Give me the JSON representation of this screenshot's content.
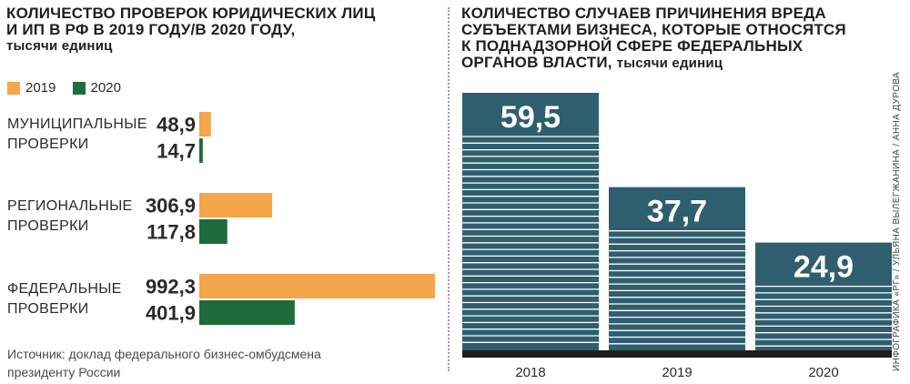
{
  "left_chart": {
    "title_lines": [
      "КОЛИЧЕСТВО ПРОВЕРОК ЮРИДИЧЕСКИХ ЛИЦ",
      "И ИП В РФ В 2019 ГОДУ/В 2020 ГОДУ,"
    ],
    "unit": "тысячи единиц",
    "legend": [
      {
        "label": "2019",
        "color": "#f5a54a"
      },
      {
        "label": "2020",
        "color": "#1e6b3c"
      }
    ],
    "groups": [
      {
        "label_lines": [
          "МУНИЦИПАЛЬНЫЕ",
          "ПРОВЕРКИ"
        ]
      },
      {
        "label_lines": [
          "РЕГИОНАЛЬНЫЕ",
          "ПРОВЕРКИ"
        ]
      },
      {
        "label_lines": [
          "ФЕДЕРАЛЬНЫЕ",
          "ПРОВЕРКИ"
        ]
      }
    ],
    "source_lines": [
      "Источник: доклад федерального бизнес-омбудсмена",
      "президенту России"
    ]
  },
  "right_chart": {
    "title_lines": [
      "КОЛИЧЕСТВО СЛУЧАЕВ ПРИЧИНЕНИЯ ВРЕДА",
      "СУБЪЕКТАМИ БИЗНЕСА, КОТОРЫЕ ОТНОСЯТСЯ",
      "К ПОДНАДЗОРНОЙ СФЕРЕ ФЕДЕРАЛЬНЫХ"
    ],
    "title_last_line": "ОРГАНОВ ВЛАСТИ,",
    "unit": "тысячи единиц",
    "bar_color": "#2f5f6e"
  },
  "credit": "ИНФОГРАФИКА «РГ» / УЛЬЯНА ВЫЛЕГЖАНИНА / АННА ДУРОВА",
  "chart_data": [
    {
      "type": "bar",
      "orientation": "horizontal",
      "categories": [
        "МУНИЦИПАЛЬНЫЕ ПРОВЕРКИ",
        "РЕГИОНАЛЬНЫЕ ПРОВЕРКИ",
        "ФЕДЕРАЛЬНЫЕ ПРОВЕРКИ"
      ],
      "series": [
        {
          "name": "2019",
          "values": [
            48.9,
            306.9,
            992.3
          ],
          "labels": [
            "48,9",
            "306,9",
            "992,3"
          ],
          "color": "#f5a54a"
        },
        {
          "name": "2020",
          "values": [
            14.7,
            117.8,
            401.9
          ],
          "labels": [
            "14,7",
            "117,8",
            "401,9"
          ],
          "color": "#1e6b3c"
        }
      ],
      "xlim": [
        0,
        992.3
      ],
      "grid": false,
      "legend_position": "top-left"
    },
    {
      "type": "bar",
      "orientation": "vertical",
      "categories": [
        "2018",
        "2019",
        "2020"
      ],
      "values": [
        59.5,
        37.7,
        24.9
      ],
      "labels": [
        "59,5",
        "37,7",
        "24,9"
      ],
      "ylim": [
        0,
        59.5
      ],
      "grid": false
    }
  ]
}
